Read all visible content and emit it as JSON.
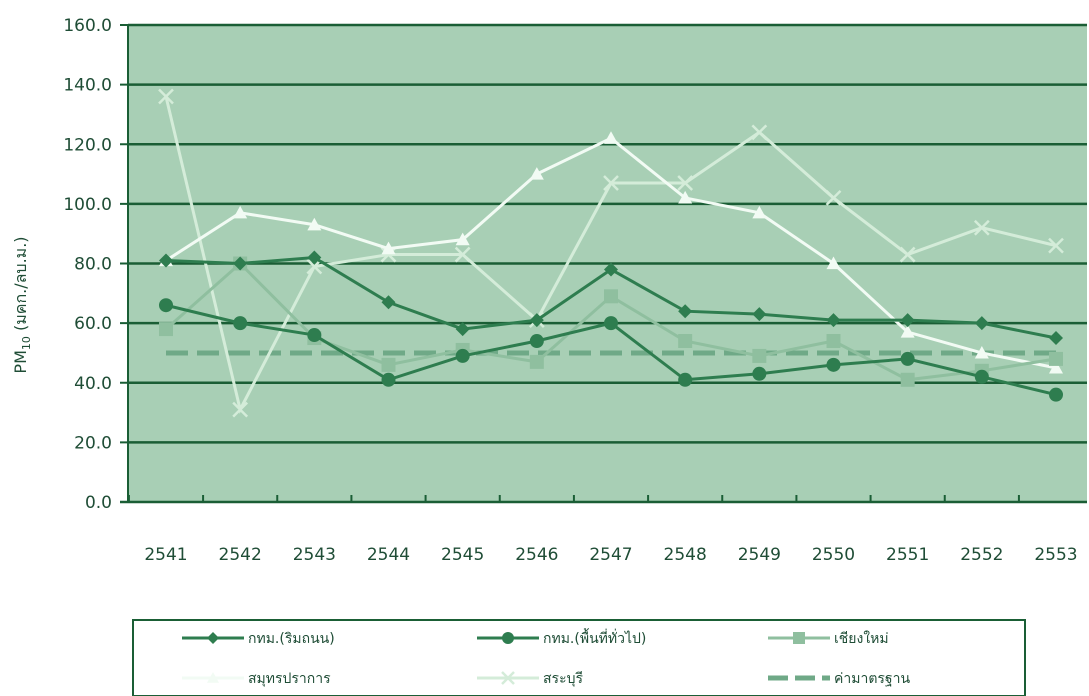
{
  "chart_data": {
    "type": "line",
    "title": "",
    "xlabel": "",
    "ylabel": "PM",
    "ylabel_subscript": "10",
    "ylabel_unit": " (มคก./ลบ.ม.)",
    "ylim": [
      0,
      160
    ],
    "yticks": [
      "0.0",
      "20.0",
      "40.0",
      "60.0",
      "80.0",
      "100.0",
      "120.0",
      "140.0",
      "160.0"
    ],
    "x": [
      "2541",
      "2542",
      "2543",
      "2544",
      "2545",
      "2546",
      "2547",
      "2548",
      "2549",
      "2550",
      "2551",
      "2552",
      "2553"
    ],
    "grid": true,
    "legend_position": "bottom",
    "series": [
      {
        "name": "กทม.(ริมถนน)",
        "color": "#2e7d4f",
        "marker": "diamond",
        "style": "solid",
        "values": [
          81,
          80,
          82,
          67,
          58,
          61,
          78,
          64,
          63,
          61,
          61,
          60,
          55
        ]
      },
      {
        "name": "กทม.(พื้นที่ทั่วไป)",
        "color": "#2e7d4f",
        "marker": "circle",
        "style": "solid",
        "values": [
          66,
          60,
          56,
          41,
          49,
          54,
          60,
          41,
          43,
          46,
          48,
          42,
          36
        ]
      },
      {
        "name": "เชียงใหม่",
        "color": "#8fbf9f",
        "marker": "square",
        "style": "solid",
        "values": [
          58,
          80,
          55,
          46,
          51,
          47,
          69,
          54,
          49,
          54,
          41,
          44,
          48
        ]
      },
      {
        "name": "สมุทรปราการ",
        "color": "#f2fbf4",
        "marker": "triangle",
        "style": "solid",
        "values": [
          81,
          97,
          93,
          85,
          88,
          110,
          122,
          102,
          97,
          80,
          57,
          50,
          45
        ]
      },
      {
        "name": "สระบุรี",
        "color": "#d4ecd9",
        "marker": "x",
        "style": "solid",
        "values": [
          136,
          31,
          79,
          83,
          83,
          61,
          107,
          107,
          124,
          102,
          83,
          92,
          86
        ]
      },
      {
        "name": "ค่ามาตรฐาน",
        "color": "#6fa987",
        "marker": "none",
        "style": "dashed",
        "values": [
          50,
          50,
          50,
          50,
          50,
          50,
          50,
          50,
          50,
          50,
          50,
          50,
          50
        ]
      }
    ]
  },
  "colors": {
    "plot_background": "#a8cfb5",
    "gridline": "#1a5e35",
    "axis": "#1a5e35",
    "text": "#1f4d36",
    "legend_border": "#1a5e35"
  }
}
